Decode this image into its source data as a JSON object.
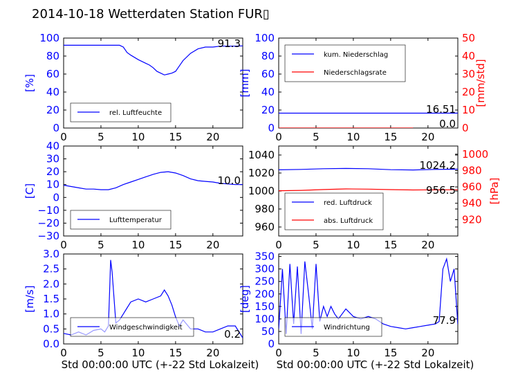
{
  "title": "2014-10-18 Wetterdaten Station FUR▯",
  "xlabel": "Std 00:00:00 UTC (+-22 Std Lokalzeit)",
  "colors": {
    "primary": "#0000ff",
    "secondary": "#ff0000"
  },
  "chart_data": [
    {
      "type": "line",
      "ylabel": "[%]",
      "xlim": [
        0,
        24
      ],
      "ylim": [
        0,
        100
      ],
      "xticks": [
        "0",
        "5",
        "10",
        "15",
        "20"
      ],
      "yticks": [
        "0",
        "20",
        "40",
        "60",
        "80",
        "100"
      ],
      "current_value": "91.3",
      "legend_position": "lower-left",
      "series": [
        {
          "name": "rel. Luftfeuchte",
          "x": [
            0,
            2,
            4,
            6,
            7.5,
            8,
            8.5,
            9,
            10,
            11,
            11.5,
            12,
            12.5,
            13,
            13.5,
            14,
            14.5,
            15,
            15.5,
            16,
            17,
            18,
            19,
            20,
            21,
            22,
            23,
            24
          ],
          "y": [
            92,
            92,
            92,
            92,
            92,
            90,
            84,
            81,
            76,
            72,
            70,
            67,
            63,
            61,
            59,
            60,
            61,
            63,
            69,
            75,
            83,
            88,
            90,
            90,
            91,
            91,
            91,
            91.3
          ]
        }
      ]
    },
    {
      "type": "line",
      "ylabel": "[mm]",
      "ylabel_right": "[mm/std]",
      "xlim": [
        0,
        24
      ],
      "ylim": [
        0,
        100
      ],
      "ylim_right": [
        0,
        50
      ],
      "xticks": [
        "0",
        "5",
        "10",
        "15",
        "20"
      ],
      "yticks": [
        "0",
        "20",
        "40",
        "60",
        "80",
        "100"
      ],
      "yticks_right": [
        "0",
        "10",
        "20",
        "30",
        "40",
        "50"
      ],
      "current_value": "16.51",
      "current_value_right": "0.0",
      "legend_position": "upper-left",
      "series": [
        {
          "name": "kum. Niederschlag",
          "axis": "left",
          "x": [
            0,
            24
          ],
          "y": [
            16.51,
            16.51
          ]
        },
        {
          "name": "Niederschlagsrate",
          "axis": "right",
          "x": [
            0,
            18
          ],
          "y": [
            0,
            0
          ]
        }
      ]
    },
    {
      "type": "line",
      "ylabel": "[C]",
      "xlim": [
        0,
        24
      ],
      "ylim": [
        -30,
        40
      ],
      "xticks": [
        "0",
        "5",
        "10",
        "15",
        "20"
      ],
      "yticks": [
        "−30",
        "−20",
        "−10",
        "0",
        "10",
        "20",
        "30",
        "40"
      ],
      "current_value": "10.0",
      "legend_position": "lower-left",
      "series": [
        {
          "name": "Lufttemperatur",
          "x": [
            0,
            1,
            2,
            3,
            4,
            5,
            6,
            7,
            8,
            9,
            10,
            11,
            12,
            13,
            14,
            15,
            16,
            17,
            18,
            19,
            20,
            21,
            22,
            23,
            24
          ],
          "y": [
            9.5,
            8.5,
            7.5,
            6.5,
            6.5,
            6,
            6,
            7.5,
            10,
            12,
            14,
            16,
            18,
            19.5,
            20,
            19,
            17,
            14.5,
            13,
            12.5,
            12,
            11,
            10.5,
            10,
            10
          ]
        }
      ]
    },
    {
      "type": "line",
      "ylabel_right": "[hPa]",
      "xlim": [
        0,
        24
      ],
      "ylim": [
        950,
        1050
      ],
      "ylim_right": [
        900,
        1010
      ],
      "xticks": [
        "0",
        "5",
        "10",
        "15",
        "20"
      ],
      "yticks": [
        "960",
        "980",
        "1000",
        "1020",
        "1040"
      ],
      "yticks_right": [
        "920",
        "940",
        "960",
        "980",
        "1000"
      ],
      "current_value": "1024.2",
      "current_value_right": "956.5",
      "legend_position": "lower-left",
      "series": [
        {
          "name": "red. Luftdruck",
          "axis": "left",
          "x": [
            0,
            3,
            6,
            9,
            12,
            15,
            18,
            21,
            24
          ],
          "y": [
            1023.5,
            1024,
            1024.8,
            1025.1,
            1024.8,
            1023.7,
            1023.4,
            1024,
            1024.2
          ]
        },
        {
          "name": "abs. Luftdruck",
          "axis": "right",
          "x": [
            0,
            3,
            6,
            9,
            12,
            15,
            18,
            21,
            24
          ],
          "y": [
            955.3,
            955.8,
            956.8,
            957.5,
            957.3,
            956.7,
            956.3,
            956.4,
            956.5
          ]
        }
      ]
    },
    {
      "type": "line",
      "ylabel": "[m/s]",
      "xlim": [
        0,
        24
      ],
      "ylim": [
        0,
        3.0
      ],
      "xticks": [
        "0",
        "5",
        "10",
        "15",
        "20"
      ],
      "yticks": [
        "0.0",
        "0.5",
        "1.0",
        "1.5",
        "2.0",
        "2.5",
        "3.0"
      ],
      "current_value": "0.2",
      "legend_position": "lower-center",
      "series": [
        {
          "name": "Windgeschwindigkeit",
          "x": [
            0,
            1,
            2,
            3,
            4,
            5,
            5.5,
            6,
            6.3,
            6.5,
            7,
            7.5,
            8,
            8.5,
            9,
            10,
            11,
            12,
            13,
            13.5,
            14,
            14.5,
            15,
            15.5,
            16,
            17,
            18,
            19,
            20,
            21,
            22,
            23,
            24
          ],
          "y": [
            0.35,
            0.3,
            0.4,
            0.3,
            0.45,
            0.5,
            0.4,
            0.6,
            2.8,
            2.4,
            0.7,
            0.8,
            1.0,
            1.2,
            1.4,
            1.5,
            1.4,
            1.5,
            1.6,
            1.8,
            1.6,
            1.3,
            0.9,
            0.6,
            0.8,
            0.5,
            0.5,
            0.4,
            0.4,
            0.5,
            0.6,
            0.6,
            0.2
          ]
        }
      ]
    },
    {
      "type": "line",
      "ylabel": "[deg]",
      "xlim": [
        0,
        24
      ],
      "ylim": [
        0,
        360
      ],
      "xticks": [
        "0",
        "5",
        "10",
        "15",
        "20"
      ],
      "yticks": [
        "0",
        "50",
        "100",
        "150",
        "200",
        "250",
        "300",
        "350"
      ],
      "current_value": "77.9",
      "legend_position": "lower-center",
      "series": [
        {
          "name": "Windrichtung",
          "x": [
            0,
            0.5,
            1,
            1.5,
            2,
            2.5,
            3,
            3.5,
            4,
            4.5,
            5,
            5.5,
            6,
            6.5,
            7,
            7.5,
            8,
            9,
            10,
            11,
            12,
            13,
            14,
            15,
            16,
            17,
            18,
            19,
            20,
            21,
            21.5,
            22,
            22.5,
            23,
            23.5,
            24
          ],
          "y": [
            60,
            300,
            40,
            320,
            80,
            310,
            40,
            330,
            200,
            60,
            320,
            90,
            150,
            110,
            150,
            120,
            100,
            140,
            110,
            100,
            110,
            100,
            80,
            70,
            65,
            60,
            65,
            70,
            75,
            80,
            90,
            300,
            340,
            250,
            300,
            78
          ]
        }
      ]
    }
  ]
}
